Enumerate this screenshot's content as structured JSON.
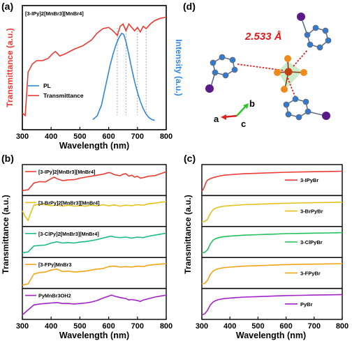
{
  "colors": {
    "red": "#ee3b33",
    "blue": "#2f86e6",
    "yellow": "#e6c21c",
    "green": "#22c25a",
    "teal": "#1fb98a",
    "orange": "#f2a51b",
    "purple": "#a322c8",
    "axis": "#000000"
  },
  "panels": {
    "a": {
      "letter": "(a)",
      "series_label": "[3-IPy]2[MnBr3][MnBr4]",
      "ylabel_left": "Transmittance (a.u.)",
      "ylabel_right": "Intensity (a.u.)",
      "xlabel": "Wavelength (nm)",
      "legend": [
        "PL",
        "Transmittance"
      ]
    },
    "b": {
      "letter": "(b)",
      "ylabel": "Transmittance (a.u.)",
      "xlabel": "Wavelength (nm)"
    },
    "c": {
      "letter": "(c)",
      "ylabel": "Transmittance (a.u.)",
      "xlabel": "Wavelength (nm)"
    },
    "d": {
      "letter": "(d)",
      "distance": "2.533 Å",
      "axis_a": "a",
      "axis_b": "b",
      "axis_c": "c"
    }
  },
  "chart_data": [
    {
      "type": "line",
      "panel": "a",
      "xlabel": "Wavelength (nm)",
      "ylabel": "Transmittance (a.u.)",
      "y2label": "Intensity (a.u.)",
      "xlim": [
        300,
        800
      ],
      "xticks": [
        300,
        400,
        500,
        600,
        700,
        800
      ],
      "dashed_lines_x": [
        630,
        660,
        700,
        730
      ],
      "series": [
        {
          "name": "Transmittance",
          "axis": "left",
          "color": "#ee3b33",
          "x": [
            300,
            310,
            320,
            335,
            350,
            370,
            390,
            405,
            415,
            430,
            450,
            480,
            510,
            540,
            560,
            580,
            600,
            615,
            630,
            640,
            650,
            660,
            670,
            680,
            690,
            700,
            710,
            720,
            730,
            745,
            760,
            780,
            800
          ],
          "y": [
            0.12,
            0.1,
            0.48,
            0.55,
            0.58,
            0.58,
            0.6,
            0.64,
            0.66,
            0.62,
            0.64,
            0.68,
            0.71,
            0.76,
            0.82,
            0.86,
            0.87,
            0.84,
            0.8,
            0.88,
            0.9,
            0.84,
            0.9,
            0.87,
            0.84,
            0.87,
            0.83,
            0.88,
            0.86,
            0.9,
            0.93,
            0.95,
            0.96
          ]
        },
        {
          "name": "PL",
          "axis": "right",
          "color": "#2f86e6",
          "x": [
            545,
            560,
            575,
            590,
            605,
            615,
            625,
            635,
            645,
            652,
            660,
            670,
            680,
            690,
            700,
            710,
            720,
            730,
            740,
            750,
            760
          ],
          "y": [
            0.02,
            0.06,
            0.18,
            0.4,
            0.62,
            0.74,
            0.84,
            0.92,
            0.97,
            0.96,
            0.88,
            0.74,
            0.58,
            0.44,
            0.32,
            0.22,
            0.14,
            0.08,
            0.04,
            0.02,
            0.01
          ]
        }
      ]
    },
    {
      "type": "line",
      "panel": "b",
      "xlabel": "Wavelength (nm)",
      "ylabel": "Transmittance (a.u.)",
      "xlim": [
        300,
        800
      ],
      "xticks": [
        300,
        400,
        500,
        600,
        700,
        800
      ],
      "series": [
        {
          "name": "[3-IPy]2[MnBr3][MnBr4]",
          "color": "#ee3b33",
          "x": [
            300,
            320,
            340,
            360,
            380,
            400,
            410,
            420,
            440,
            460,
            480,
            500,
            520,
            540,
            560,
            580,
            600,
            610,
            620,
            640,
            650,
            660,
            670,
            680,
            690,
            700,
            710,
            720,
            740,
            760,
            780,
            800
          ],
          "y": [
            0.12,
            0.15,
            0.42,
            0.48,
            0.47,
            0.6,
            0.66,
            0.6,
            0.52,
            0.55,
            0.56,
            0.62,
            0.66,
            0.7,
            0.74,
            0.78,
            0.85,
            0.82,
            0.76,
            0.72,
            0.78,
            0.8,
            0.7,
            0.74,
            0.66,
            0.7,
            0.62,
            0.64,
            0.7,
            0.72,
            0.8,
            0.88
          ]
        },
        {
          "name": "[3-BrPy]2[MnBr3][MnBr4]",
          "color": "#e6c21c",
          "x": [
            300,
            310,
            320,
            330,
            340,
            360,
            380,
            400,
            420,
            440,
            460,
            480,
            500,
            520,
            540,
            560,
            580,
            600,
            620,
            640,
            660,
            680,
            700,
            720,
            740,
            760,
            780,
            800
          ],
          "y": [
            0.55,
            0.32,
            0.16,
            0.5,
            0.78,
            0.82,
            0.8,
            0.76,
            0.78,
            0.74,
            0.78,
            0.74,
            0.76,
            0.74,
            0.78,
            0.75,
            0.8,
            0.75,
            0.79,
            0.74,
            0.78,
            0.76,
            0.8,
            0.78,
            0.84,
            0.86,
            0.9,
            0.92
          ]
        },
        {
          "name": "[3-ClPy]2[MnBr3][MnBr4]",
          "color": "#1fb98a",
          "x": [
            300,
            320,
            340,
            360,
            380,
            400,
            420,
            440,
            460,
            480,
            500,
            520,
            540,
            560,
            580,
            600,
            610,
            620,
            640,
            660,
            680,
            700,
            720,
            740,
            760,
            780,
            800
          ],
          "y": [
            0.1,
            0.14,
            0.38,
            0.4,
            0.42,
            0.5,
            0.55,
            0.5,
            0.52,
            0.5,
            0.54,
            0.56,
            0.6,
            0.64,
            0.7,
            0.76,
            0.78,
            0.74,
            0.72,
            0.74,
            0.7,
            0.74,
            0.72,
            0.78,
            0.82,
            0.86,
            0.9
          ]
        },
        {
          "name": "[3-FPy]MnBr3",
          "color": "#f2a51b",
          "x": [
            300,
            320,
            340,
            360,
            380,
            400,
            420,
            440,
            460,
            480,
            500,
            520,
            540,
            560,
            580,
            600,
            620,
            640,
            660,
            680,
            700,
            720,
            740,
            760,
            780,
            800
          ],
          "y": [
            0.05,
            0.1,
            0.5,
            0.56,
            0.58,
            0.66,
            0.7,
            0.6,
            0.62,
            0.58,
            0.6,
            0.62,
            0.66,
            0.7,
            0.72,
            0.8,
            0.82,
            0.78,
            0.8,
            0.78,
            0.82,
            0.8,
            0.86,
            0.88,
            0.9,
            0.92
          ]
        },
        {
          "name": "PyMnBr3OH2",
          "color": "#a322c8",
          "x": [
            300,
            320,
            340,
            360,
            380,
            400,
            420,
            440,
            460,
            480,
            500,
            520,
            540,
            560,
            580,
            600,
            610,
            620,
            640,
            660,
            670,
            680,
            700,
            710,
            720,
            740,
            760,
            780,
            800
          ],
          "y": [
            0.1,
            0.3,
            0.5,
            0.54,
            0.56,
            0.58,
            0.6,
            0.56,
            0.56,
            0.54,
            0.56,
            0.58,
            0.62,
            0.68,
            0.78,
            0.86,
            0.9,
            0.86,
            0.8,
            0.76,
            0.7,
            0.72,
            0.68,
            0.64,
            0.7,
            0.76,
            0.82,
            0.86,
            0.9
          ]
        }
      ]
    },
    {
      "type": "line",
      "panel": "c",
      "xlabel": "Wavelength (nm)",
      "ylabel": "Transmittance (a.u.)",
      "xlim": [
        300,
        800
      ],
      "xticks": [
        300,
        400,
        500,
        600,
        700,
        800
      ],
      "series": [
        {
          "name": "3-IPyBr",
          "color": "#ee3b33",
          "x": [
            300,
            305,
            310,
            315,
            320,
            330,
            340,
            360,
            380,
            400,
            450,
            500,
            550,
            600,
            650,
            700,
            750,
            800
          ],
          "y": [
            0.1,
            0.16,
            0.3,
            0.45,
            0.54,
            0.6,
            0.64,
            0.7,
            0.74,
            0.76,
            0.8,
            0.82,
            0.84,
            0.86,
            0.87,
            0.88,
            0.89,
            0.9
          ]
        },
        {
          "name": "3-BrPyBr",
          "color": "#e6c21c",
          "x": [
            300,
            310,
            320,
            330,
            340,
            350,
            360,
            380,
            400,
            450,
            500,
            550,
            600,
            650,
            700,
            750,
            800
          ],
          "y": [
            0.1,
            0.12,
            0.2,
            0.44,
            0.6,
            0.66,
            0.7,
            0.74,
            0.76,
            0.8,
            0.82,
            0.84,
            0.86,
            0.87,
            0.88,
            0.89,
            0.9
          ]
        },
        {
          "name": "3-ClPyBr",
          "color": "#22c25a",
          "x": [
            300,
            310,
            320,
            330,
            340,
            350,
            360,
            380,
            400,
            450,
            500,
            550,
            600,
            650,
            700,
            750,
            800
          ],
          "y": [
            0.1,
            0.12,
            0.22,
            0.46,
            0.62,
            0.68,
            0.72,
            0.76,
            0.78,
            0.82,
            0.84,
            0.86,
            0.88,
            0.89,
            0.9,
            0.91,
            0.92
          ]
        },
        {
          "name": "3-FPyBr",
          "color": "#f2a51b",
          "x": [
            300,
            310,
            320,
            330,
            340,
            350,
            360,
            380,
            400,
            450,
            500,
            550,
            600,
            650,
            700,
            750,
            800
          ],
          "y": [
            0.1,
            0.12,
            0.24,
            0.48,
            0.62,
            0.68,
            0.72,
            0.76,
            0.78,
            0.82,
            0.84,
            0.86,
            0.88,
            0.89,
            0.9,
            0.91,
            0.92
          ]
        },
        {
          "name": "PyBr",
          "color": "#a322c8",
          "x": [
            300,
            310,
            320,
            330,
            340,
            350,
            360,
            380,
            400,
            450,
            500,
            550,
            600,
            650,
            700,
            750,
            800
          ],
          "y": [
            0.1,
            0.14,
            0.28,
            0.5,
            0.62,
            0.68,
            0.72,
            0.76,
            0.78,
            0.82,
            0.84,
            0.86,
            0.88,
            0.89,
            0.9,
            0.91,
            0.92
          ]
        }
      ]
    }
  ]
}
